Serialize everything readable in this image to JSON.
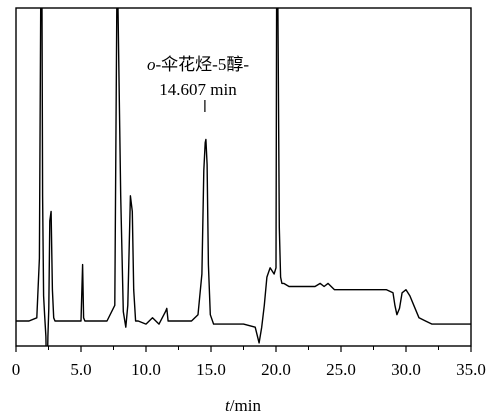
{
  "chart_data": {
    "type": "line",
    "xlabel": {
      "var": "t",
      "unit": "/min"
    },
    "ylabel": "",
    "xlim": [
      0,
      35
    ],
    "ylim": [
      -8,
      100
    ],
    "grid": false,
    "legend": "none",
    "x_ticks": [
      {
        "value": 0,
        "label": "0"
      },
      {
        "value": 5,
        "label": "5.0"
      },
      {
        "value": 10,
        "label": "10.0"
      },
      {
        "value": 15,
        "label": "15.0"
      },
      {
        "value": 20,
        "label": "20.0"
      },
      {
        "value": 25,
        "label": "25.0"
      },
      {
        "value": 30,
        "label": "30.0"
      },
      {
        "value": 35,
        "label": "35.0"
      }
    ],
    "annotation": {
      "prefix": "o",
      "name": "-伞花烃-5醇-",
      "time_label": "14.607 min",
      "x": 14.607
    },
    "series": [
      {
        "color": "#000000",
        "x": [
          0.0,
          1.0,
          1.6,
          1.8,
          1.9,
          2.0,
          2.05,
          2.12,
          2.2,
          2.3,
          2.38,
          2.45,
          2.52,
          2.6,
          2.7,
          2.8,
          2.9,
          3.0,
          3.2,
          3.5,
          4.5,
          5.0,
          5.12,
          5.2,
          5.3,
          5.5,
          7.0,
          7.6,
          7.75,
          7.85,
          8.05,
          8.25,
          8.45,
          8.6,
          8.8,
          8.95,
          9.05,
          9.2,
          9.4,
          10.0,
          10.5,
          11.0,
          11.5,
          11.6,
          11.7,
          12.5,
          13.5,
          14.0,
          14.3,
          14.45,
          14.55,
          14.607,
          14.7,
          14.8,
          14.95,
          15.2,
          16.0,
          17.5,
          18.4,
          18.7,
          18.9,
          19.1,
          19.3,
          19.55,
          19.7,
          19.85,
          20.0,
          20.05,
          20.15,
          20.25,
          20.35,
          20.45,
          20.6,
          21.0,
          22.0,
          23.0,
          23.4,
          23.7,
          24.0,
          24.5,
          25.5,
          27.0,
          28.5,
          29.0,
          29.15,
          29.3,
          29.5,
          29.7,
          30.0,
          30.3,
          30.6,
          31.0,
          31.5,
          32.0,
          33.0,
          34.0,
          35.0
        ],
        "y": [
          0,
          0,
          1,
          20,
          100,
          100,
          40,
          8,
          2,
          -5,
          -25,
          -5,
          4,
          32,
          35,
          10,
          1,
          0,
          0,
          0,
          0,
          0,
          18,
          1,
          0,
          0,
          0,
          5,
          100,
          100,
          40,
          3,
          -2,
          5,
          40,
          35,
          10,
          0,
          0,
          -1,
          1,
          -1,
          3,
          4,
          0,
          0,
          0,
          2,
          15,
          48,
          57,
          58,
          50,
          18,
          2,
          -1,
          -1,
          -1,
          -2,
          -7,
          -2,
          5,
          14,
          17,
          16,
          15,
          17,
          100,
          100,
          30,
          14,
          12,
          12,
          11,
          11,
          11,
          12,
          11,
          12,
          10,
          10,
          10,
          10,
          9,
          5,
          2,
          4,
          9,
          10,
          8,
          5,
          1,
          0,
          -1,
          -1,
          -1,
          -1
        ]
      }
    ]
  }
}
